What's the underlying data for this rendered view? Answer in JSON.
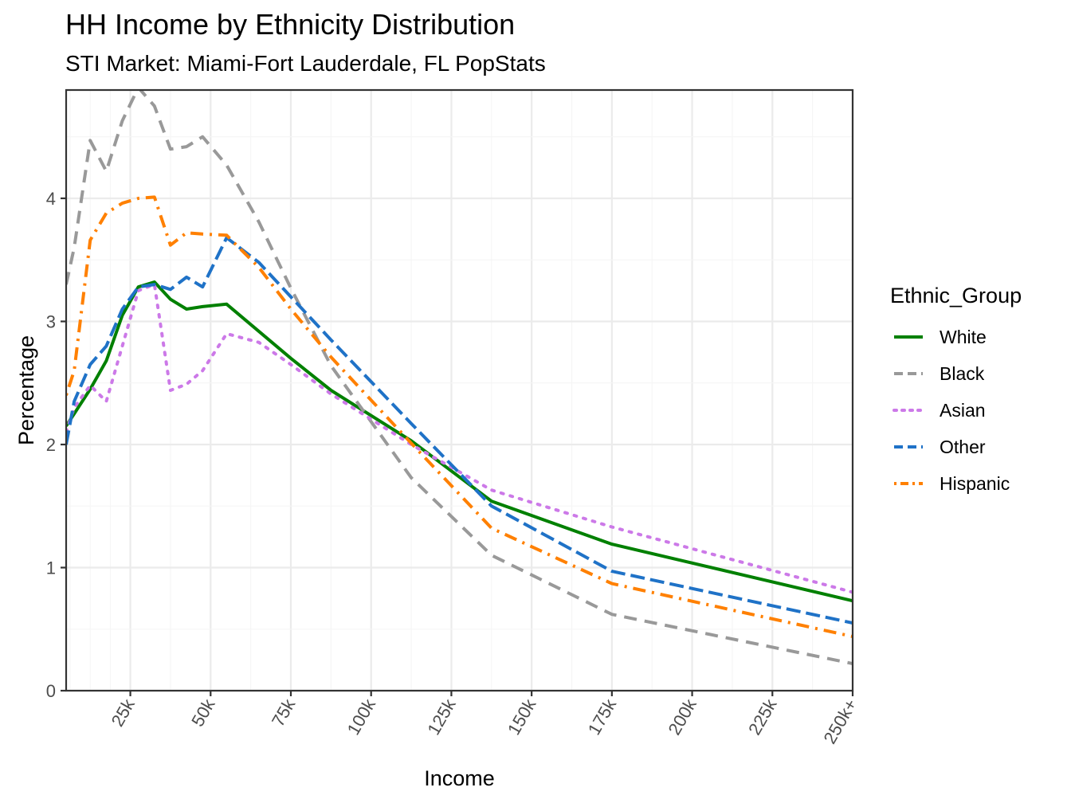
{
  "chart_data": {
    "type": "line",
    "title": "HH Income by Ethnicity Distribution",
    "subtitle": "STI Market: Miami-Fort Lauderdale, FL PopStats",
    "xlabel": "Income",
    "ylabel": "Percentage",
    "xlim": [
      5,
      250
    ],
    "ylim": [
      0,
      4.88
    ],
    "x_ticks": [
      25,
      50,
      75,
      100,
      125,
      150,
      175,
      200,
      225,
      250
    ],
    "x_tick_labels": [
      "25k",
      "50k",
      "75k",
      "100k",
      "125k",
      "150k",
      "175k",
      "200k",
      "225k",
      "250k+"
    ],
    "y_ticks": [
      0,
      1,
      2,
      3,
      4
    ],
    "y_tick_labels": [
      "0",
      "1",
      "2",
      "3",
      "4"
    ],
    "legend_title": "Ethnic_Group",
    "legend_position": "right",
    "grid": true,
    "x": [
      5,
      7.5,
      12.5,
      17.5,
      22.5,
      27.5,
      32.5,
      37.5,
      42.5,
      47.5,
      55,
      65,
      75,
      87.5,
      112.5,
      137.5,
      175,
      250
    ],
    "series": [
      {
        "name": "White",
        "color": "#008000",
        "dash": "solid",
        "values": [
          2.15,
          2.25,
          2.45,
          2.68,
          3.05,
          3.28,
          3.32,
          3.18,
          3.1,
          3.12,
          3.14,
          2.92,
          2.7,
          2.44,
          2.03,
          1.54,
          1.19,
          0.73
        ]
      },
      {
        "name": "Black",
        "color": "#999999",
        "dash": "dashed",
        "values": [
          3.3,
          3.6,
          4.47,
          4.22,
          4.63,
          4.9,
          4.75,
          4.4,
          4.42,
          4.5,
          4.27,
          3.81,
          3.27,
          2.64,
          1.73,
          1.1,
          0.62,
          0.22
        ]
      },
      {
        "name": "Asian",
        "color": "#CC79E8",
        "dash": "dotted",
        "values": [
          2.1,
          2.3,
          2.48,
          2.35,
          2.8,
          3.25,
          3.3,
          2.44,
          2.49,
          2.6,
          2.9,
          2.83,
          2.65,
          2.41,
          2.0,
          1.63,
          1.33,
          0.8
        ]
      },
      {
        "name": "Other",
        "color": "#1F72C7",
        "dash": "longdash",
        "values": [
          2.0,
          2.35,
          2.65,
          2.8,
          3.1,
          3.28,
          3.3,
          3.26,
          3.36,
          3.28,
          3.68,
          3.48,
          3.2,
          2.85,
          2.17,
          1.5,
          0.97,
          0.55
        ]
      },
      {
        "name": "Hispanic",
        "color": "#FF8000",
        "dash": "dotdash",
        "values": [
          2.4,
          2.6,
          3.66,
          3.88,
          3.96,
          4.0,
          4.01,
          3.62,
          3.72,
          3.71,
          3.7,
          3.44,
          3.1,
          2.71,
          2.01,
          1.32,
          0.87,
          0.44
        ]
      }
    ]
  }
}
